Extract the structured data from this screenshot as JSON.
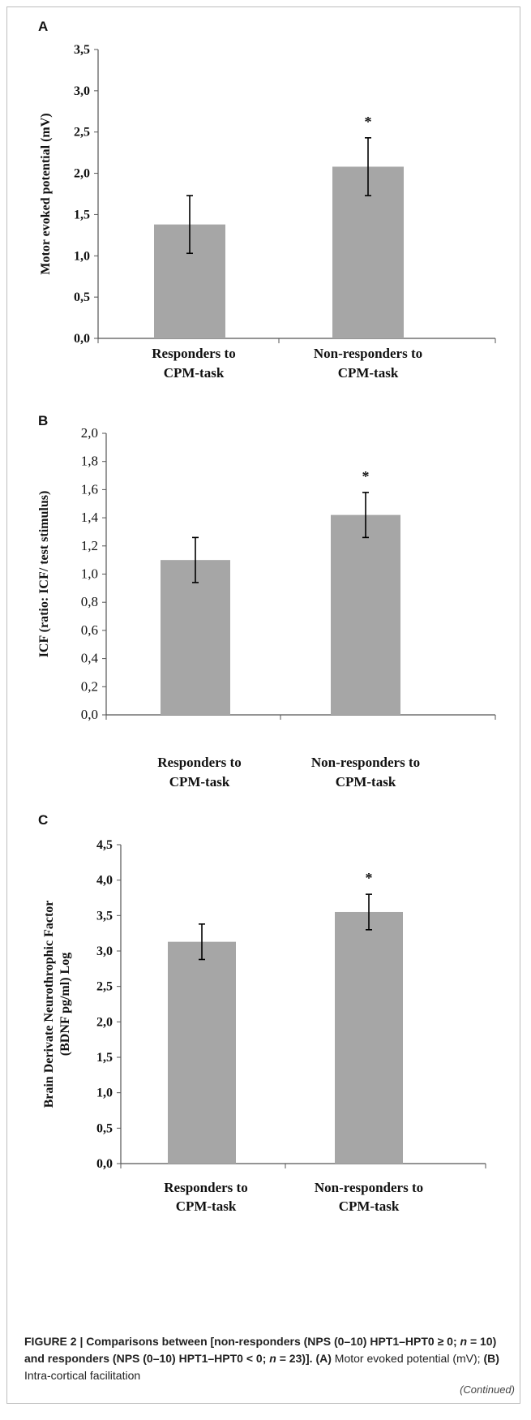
{
  "chart_data": [
    {
      "type": "bar",
      "panel": "A",
      "categories": [
        [
          "Responders to",
          "CPM-task"
        ],
        [
          "Non-responders to",
          "CPM-task"
        ]
      ],
      "values": [
        1.38,
        2.08
      ],
      "error": [
        0.35,
        0.35
      ],
      "significance": [
        "",
        "*"
      ],
      "ylabel": "Motor evoked potential (mV)",
      "ylim": [
        0,
        3.5
      ],
      "yticks": [
        "0,0",
        "0,5",
        "1,0",
        "1,5",
        "2,0",
        "2,5",
        "3,0",
        "3,5"
      ],
      "bar_color": "#a6a6a6",
      "grid": false
    },
    {
      "type": "bar",
      "panel": "B",
      "categories": [
        [
          "Responders to",
          "CPM-task"
        ],
        [
          "Non-responders to",
          "CPM-task"
        ]
      ],
      "values": [
        1.1,
        1.42
      ],
      "error": [
        0.16,
        0.16
      ],
      "significance": [
        "",
        "*"
      ],
      "ylabel": "ICF (ratio: ICF/ test stimulus)",
      "ylim": [
        0,
        2.0
      ],
      "yticks": [
        "0,0",
        "0,2",
        "0,4",
        "0,6",
        "0,8",
        "1,0",
        "1,2",
        "1,4",
        "1,6",
        "1,8",
        "2,0"
      ],
      "bar_color": "#a6a6a6",
      "grid": false
    },
    {
      "type": "bar",
      "panel": "C",
      "categories": [
        [
          "Responders to",
          "CPM-task"
        ],
        [
          "Non-responders to",
          "CPM-task"
        ]
      ],
      "values": [
        3.13,
        3.55
      ],
      "error": [
        0.25,
        0.25
      ],
      "significance": [
        "",
        "*"
      ],
      "ylabel": [
        "Brain Derivate Neurothrophic Factor",
        "(BDNF pg/ml) Log"
      ],
      "ylim": [
        0,
        4.5
      ],
      "yticks": [
        "0,0",
        "0,5",
        "1,0",
        "1,5",
        "2,0",
        "2,5",
        "3,0",
        "3,5",
        "4,0",
        "4,5"
      ],
      "bar_color": "#a6a6a6",
      "grid": false
    }
  ],
  "caption": {
    "figure_label": "FIGURE 2 | ",
    "title": "Comparisons between [non-responders (NPS (0–10) HPT1–HPT0 ≥ 0; ",
    "n1_label": "n",
    "n1_value": " = 10) and responders (NPS (0–10) HPT1–HPT0 < 0; ",
    "n2_label": "n",
    "n2_value": " = 23)]. ",
    "a_tag": "(A)",
    "a_text": " Motor evoked potential (mV); ",
    "b_tag": "(B)",
    "b_text": " Intra-cortical facilitation",
    "continued": "(Continued)"
  }
}
